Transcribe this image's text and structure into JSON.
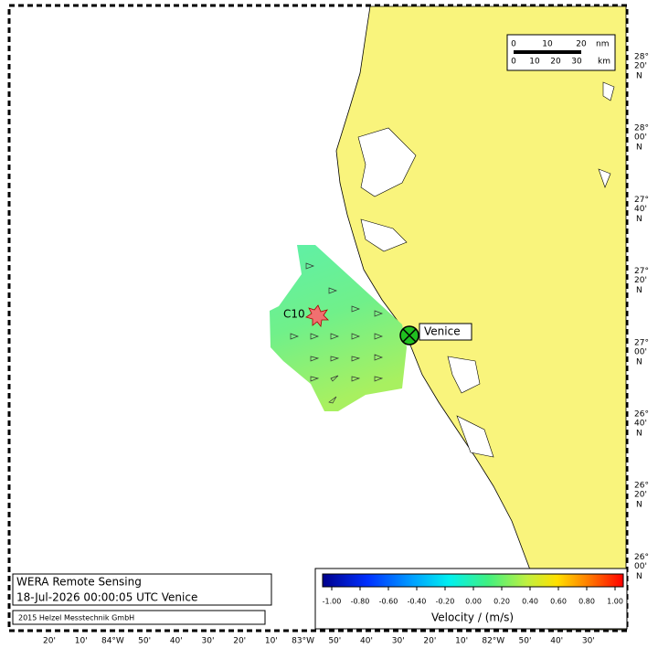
{
  "map": {
    "scale_bar": {
      "nm_ticks": [
        "0",
        "10",
        "20"
      ],
      "nm_unit": "nm",
      "km_ticks": [
        "0",
        "10",
        "20",
        "30"
      ],
      "km_unit": "km"
    },
    "lat_labels": [
      {
        "deg": "28°",
        "min": "20'",
        "hemi": "N"
      },
      {
        "deg": "28°",
        "min": "00'",
        "hemi": "N"
      },
      {
        "deg": "27°",
        "min": "40'",
        "hemi": "N"
      },
      {
        "deg": "27°",
        "min": "20'",
        "hemi": "N"
      },
      {
        "deg": "27°",
        "min": "00'",
        "hemi": "N"
      },
      {
        "deg": "26°",
        "min": "40'",
        "hemi": "N"
      },
      {
        "deg": "26°",
        "min": "20'",
        "hemi": "N"
      },
      {
        "deg": "26°",
        "min": "00'",
        "hemi": "N"
      }
    ],
    "lon_labels": [
      "20'",
      "10'",
      "84°W",
      "50'",
      "40'",
      "30'",
      "20'",
      "10'",
      "83°W",
      "50'",
      "40'",
      "30'",
      "20'",
      "10'",
      "82°W",
      "50'",
      "40'",
      "30'"
    ],
    "site": "Venice",
    "station": "C10",
    "info": {
      "title": "WERA Remote Sensing",
      "timestamp": "18-Jul-2026 00:00:05 UTC  Venice",
      "credit": "2015 Helzel Messtechnik GmbH"
    },
    "colorbar": {
      "label": "Velocity / (m/s)",
      "range": [
        -1,
        1
      ],
      "ticks": [
        {
          "value": -1,
          "label": "-1.00"
        },
        {
          "value": -0.8,
          "label": "-0.80"
        },
        {
          "value": -0.6,
          "label": "-0.60"
        },
        {
          "value": -0.4,
          "label": "-0.40"
        },
        {
          "value": -0.2,
          "label": "-0.20"
        },
        {
          "value": 0,
          "label": "0.00"
        },
        {
          "value": 0.2,
          "label": "0.20"
        },
        {
          "value": 0.4,
          "label": "0.40"
        },
        {
          "value": 0.6,
          "label": "0.60"
        },
        {
          "value": 0.8,
          "label": "0.80"
        },
        {
          "value": 1,
          "label": "1.00"
        }
      ]
    }
  }
}
